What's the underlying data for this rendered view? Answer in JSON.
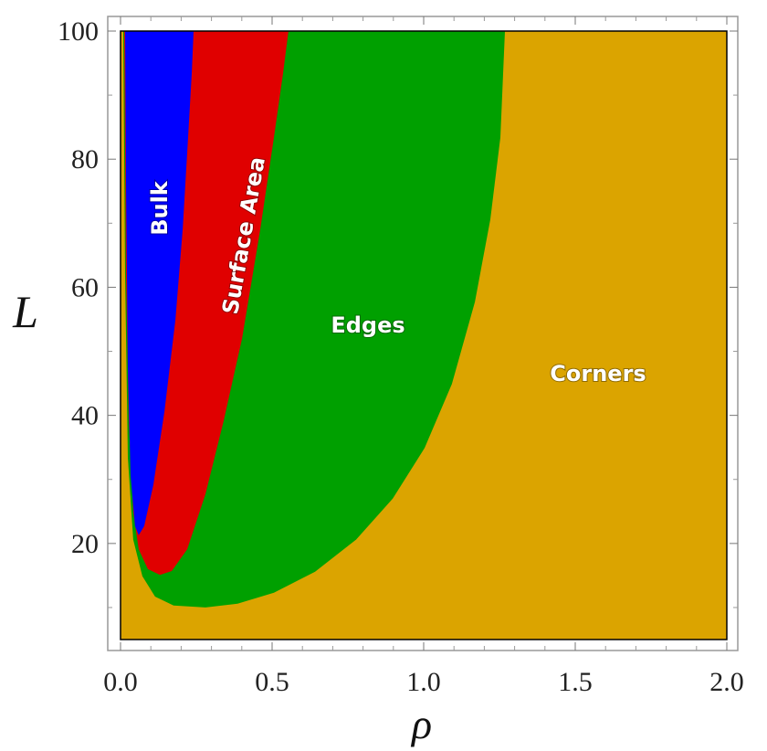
{
  "chart_data": {
    "type": "region",
    "xlabel": "ρ",
    "ylabel": "L",
    "xlim": [
      0,
      2
    ],
    "ylim": [
      5,
      100
    ],
    "xticks": [
      {
        "value": 0,
        "label": "0.0"
      },
      0.5,
      {
        "value": 1,
        "label": "1.0"
      },
      1.5,
      {
        "value": 2,
        "label": "2.0"
      }
    ],
    "x_minor_ticks": [
      0.1,
      0.2,
      0.3,
      0.4,
      0.6,
      0.7,
      0.8,
      0.9,
      1.1,
      1.2,
      1.3,
      1.4,
      1.6,
      1.7,
      1.8,
      1.9
    ],
    "yticks": [
      20,
      40,
      60,
      80,
      100
    ],
    "y_minor_ticks": [
      10,
      30,
      50,
      70,
      90
    ],
    "regions": [
      {
        "name": "Corners",
        "color": "#dba400"
      },
      {
        "name": "Edges",
        "color": "#00a000",
        "x": [
          0.009,
          0.015,
          0.024,
          0.042,
          0.072,
          0.114,
          0.175,
          0.28,
          0.386,
          0.506,
          0.642,
          0.777,
          0.898,
          1.003,
          1.093,
          1.169,
          1.22,
          1.253,
          1.268
        ],
        "y": [
          100,
          62,
          33.4,
          20.6,
          14.9,
          11.7,
          10.3,
          10,
          10.6,
          12.3,
          15.6,
          20.6,
          27,
          34.9,
          44.9,
          57.7,
          70.6,
          83.4,
          100
        ]
      },
      {
        "name": "Surface Area",
        "color": "#e00000",
        "x": [
          0.012,
          0.018,
          0.027,
          0.042,
          0.06,
          0.09,
          0.13,
          0.169,
          0.22,
          0.28,
          0.34,
          0.401,
          0.461,
          0.506,
          0.536,
          0.554
        ],
        "y": [
          100,
          62,
          39.1,
          24.9,
          19.1,
          16,
          15.1,
          15.7,
          19.1,
          27.7,
          39.1,
          52,
          69.1,
          83.4,
          93.4,
          100
        ]
      },
      {
        "name": "Bulk",
        "color": "#0000ff",
        "x": [
          0.015,
          0.018,
          0.024,
          0.033,
          0.048,
          0.06,
          0.078,
          0.108,
          0.145,
          0.181,
          0.205,
          0.223,
          0.235,
          0.241
        ],
        "y": [
          100,
          76.3,
          47.7,
          30.6,
          22.7,
          21.3,
          22.7,
          29.1,
          40.6,
          54.9,
          69.1,
          83.4,
          93.4,
          100
        ]
      }
    ]
  }
}
